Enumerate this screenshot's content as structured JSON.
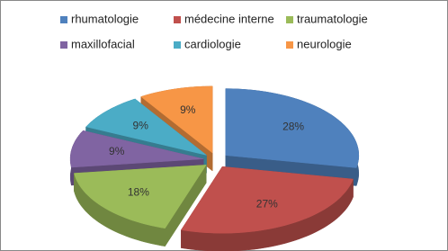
{
  "chart_data": {
    "type": "pie",
    "categories": [
      "rhumatologie",
      "médecine interne",
      "traumatologie",
      "maxillofacial",
      "cardiologie",
      "neurologie"
    ],
    "values": [
      28,
      27,
      18,
      9,
      9,
      9
    ],
    "value_labels": [
      "28%",
      "27%",
      "18%",
      "9%",
      "9%",
      "9%"
    ],
    "colors": [
      "#4F81BD",
      "#C0504D",
      "#9BBB59",
      "#8064A2",
      "#4BACC6",
      "#F79646"
    ]
  }
}
